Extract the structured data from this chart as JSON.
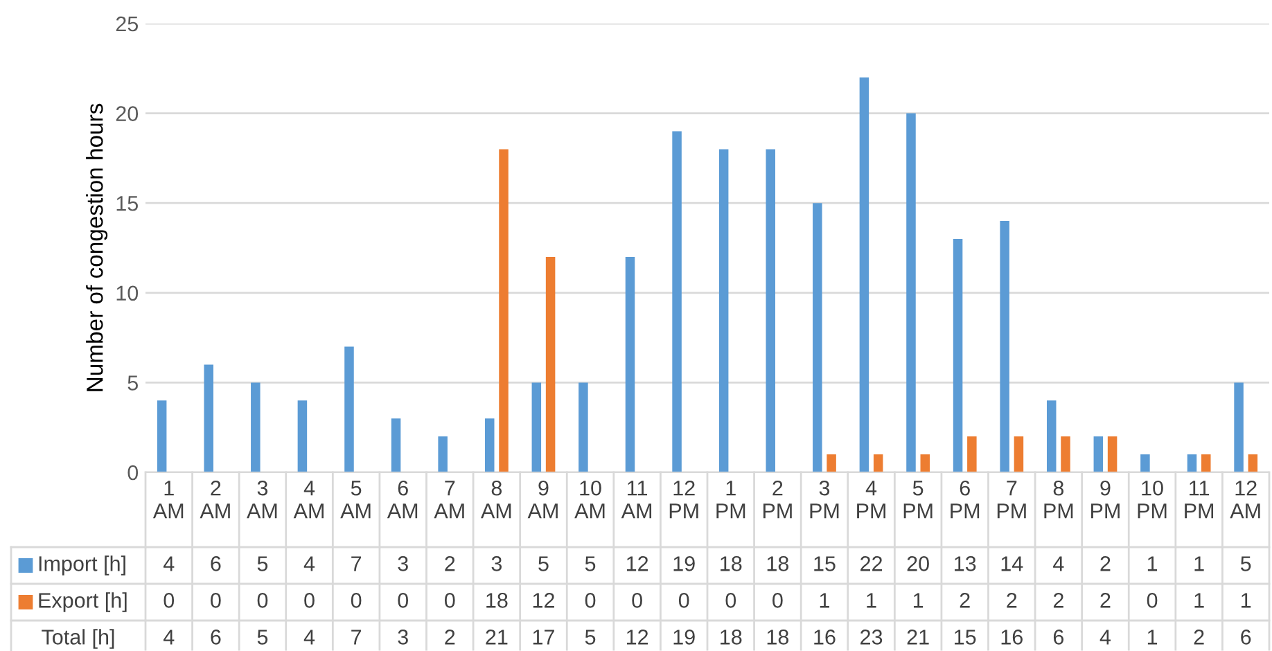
{
  "chart_data": {
    "type": "bar",
    "ylabel": "Number of congestion hours",
    "categories": [
      "1\nAM",
      "2\nAM",
      "3\nAM",
      "4\nAM",
      "5\nAM",
      "6\nAM",
      "7\nAM",
      "8\nAM",
      "9\nAM",
      "10\nAM",
      "11\nAM",
      "12\nPM",
      "1\nPM",
      "2\nPM",
      "3\nPM",
      "4\nPM",
      "5\nPM",
      "6\nPM",
      "7\nPM",
      "8\nPM",
      "9\nPM",
      "10\nPM",
      "11\nPM",
      "12\nAM"
    ],
    "series": [
      {
        "name": "Import [h]",
        "color": "#5b9bd5",
        "values": [
          4,
          6,
          5,
          4,
          7,
          3,
          2,
          3,
          5,
          5,
          12,
          19,
          18,
          18,
          15,
          22,
          20,
          13,
          14,
          4,
          2,
          1,
          1,
          5
        ],
        "value_labels": [
          "4",
          "6",
          "5",
          "4",
          "7",
          "3",
          "2",
          "3",
          "5",
          "5",
          "12",
          "19",
          "18",
          "18",
          "15",
          "22",
          "20",
          "13",
          "14",
          "4",
          "2",
          "1",
          "1",
          "5"
        ]
      },
      {
        "name": "Export [h]",
        "color": "#ed7d31",
        "values": [
          0,
          0,
          0,
          0,
          0,
          0,
          0,
          18,
          12,
          0,
          0,
          0,
          0,
          0,
          1,
          1,
          1,
          2,
          2,
          2,
          2,
          0,
          1,
          1
        ],
        "value_labels": [
          "0",
          "0",
          "0",
          "0",
          "0",
          "0",
          "0",
          "18",
          "12",
          "0",
          "0",
          "0",
          "0",
          "0",
          "1",
          "1",
          "1",
          "2",
          "2",
          "2",
          "2",
          "0",
          "1",
          "1"
        ]
      }
    ],
    "annotations": [
      "Total [h]",
      "4",
      "6",
      "5",
      "4",
      "7",
      "3",
      "2",
      "21",
      "17",
      "5",
      "12",
      "19",
      "18",
      "18",
      "16",
      "23",
      "21",
      "15",
      "16",
      "6",
      "4",
      "1",
      "2",
      "6"
    ],
    "ylim": [
      0,
      25
    ],
    "yticks": [
      0,
      5,
      10,
      15,
      20,
      25
    ],
    "grid": "y",
    "legend": "bottom"
  }
}
